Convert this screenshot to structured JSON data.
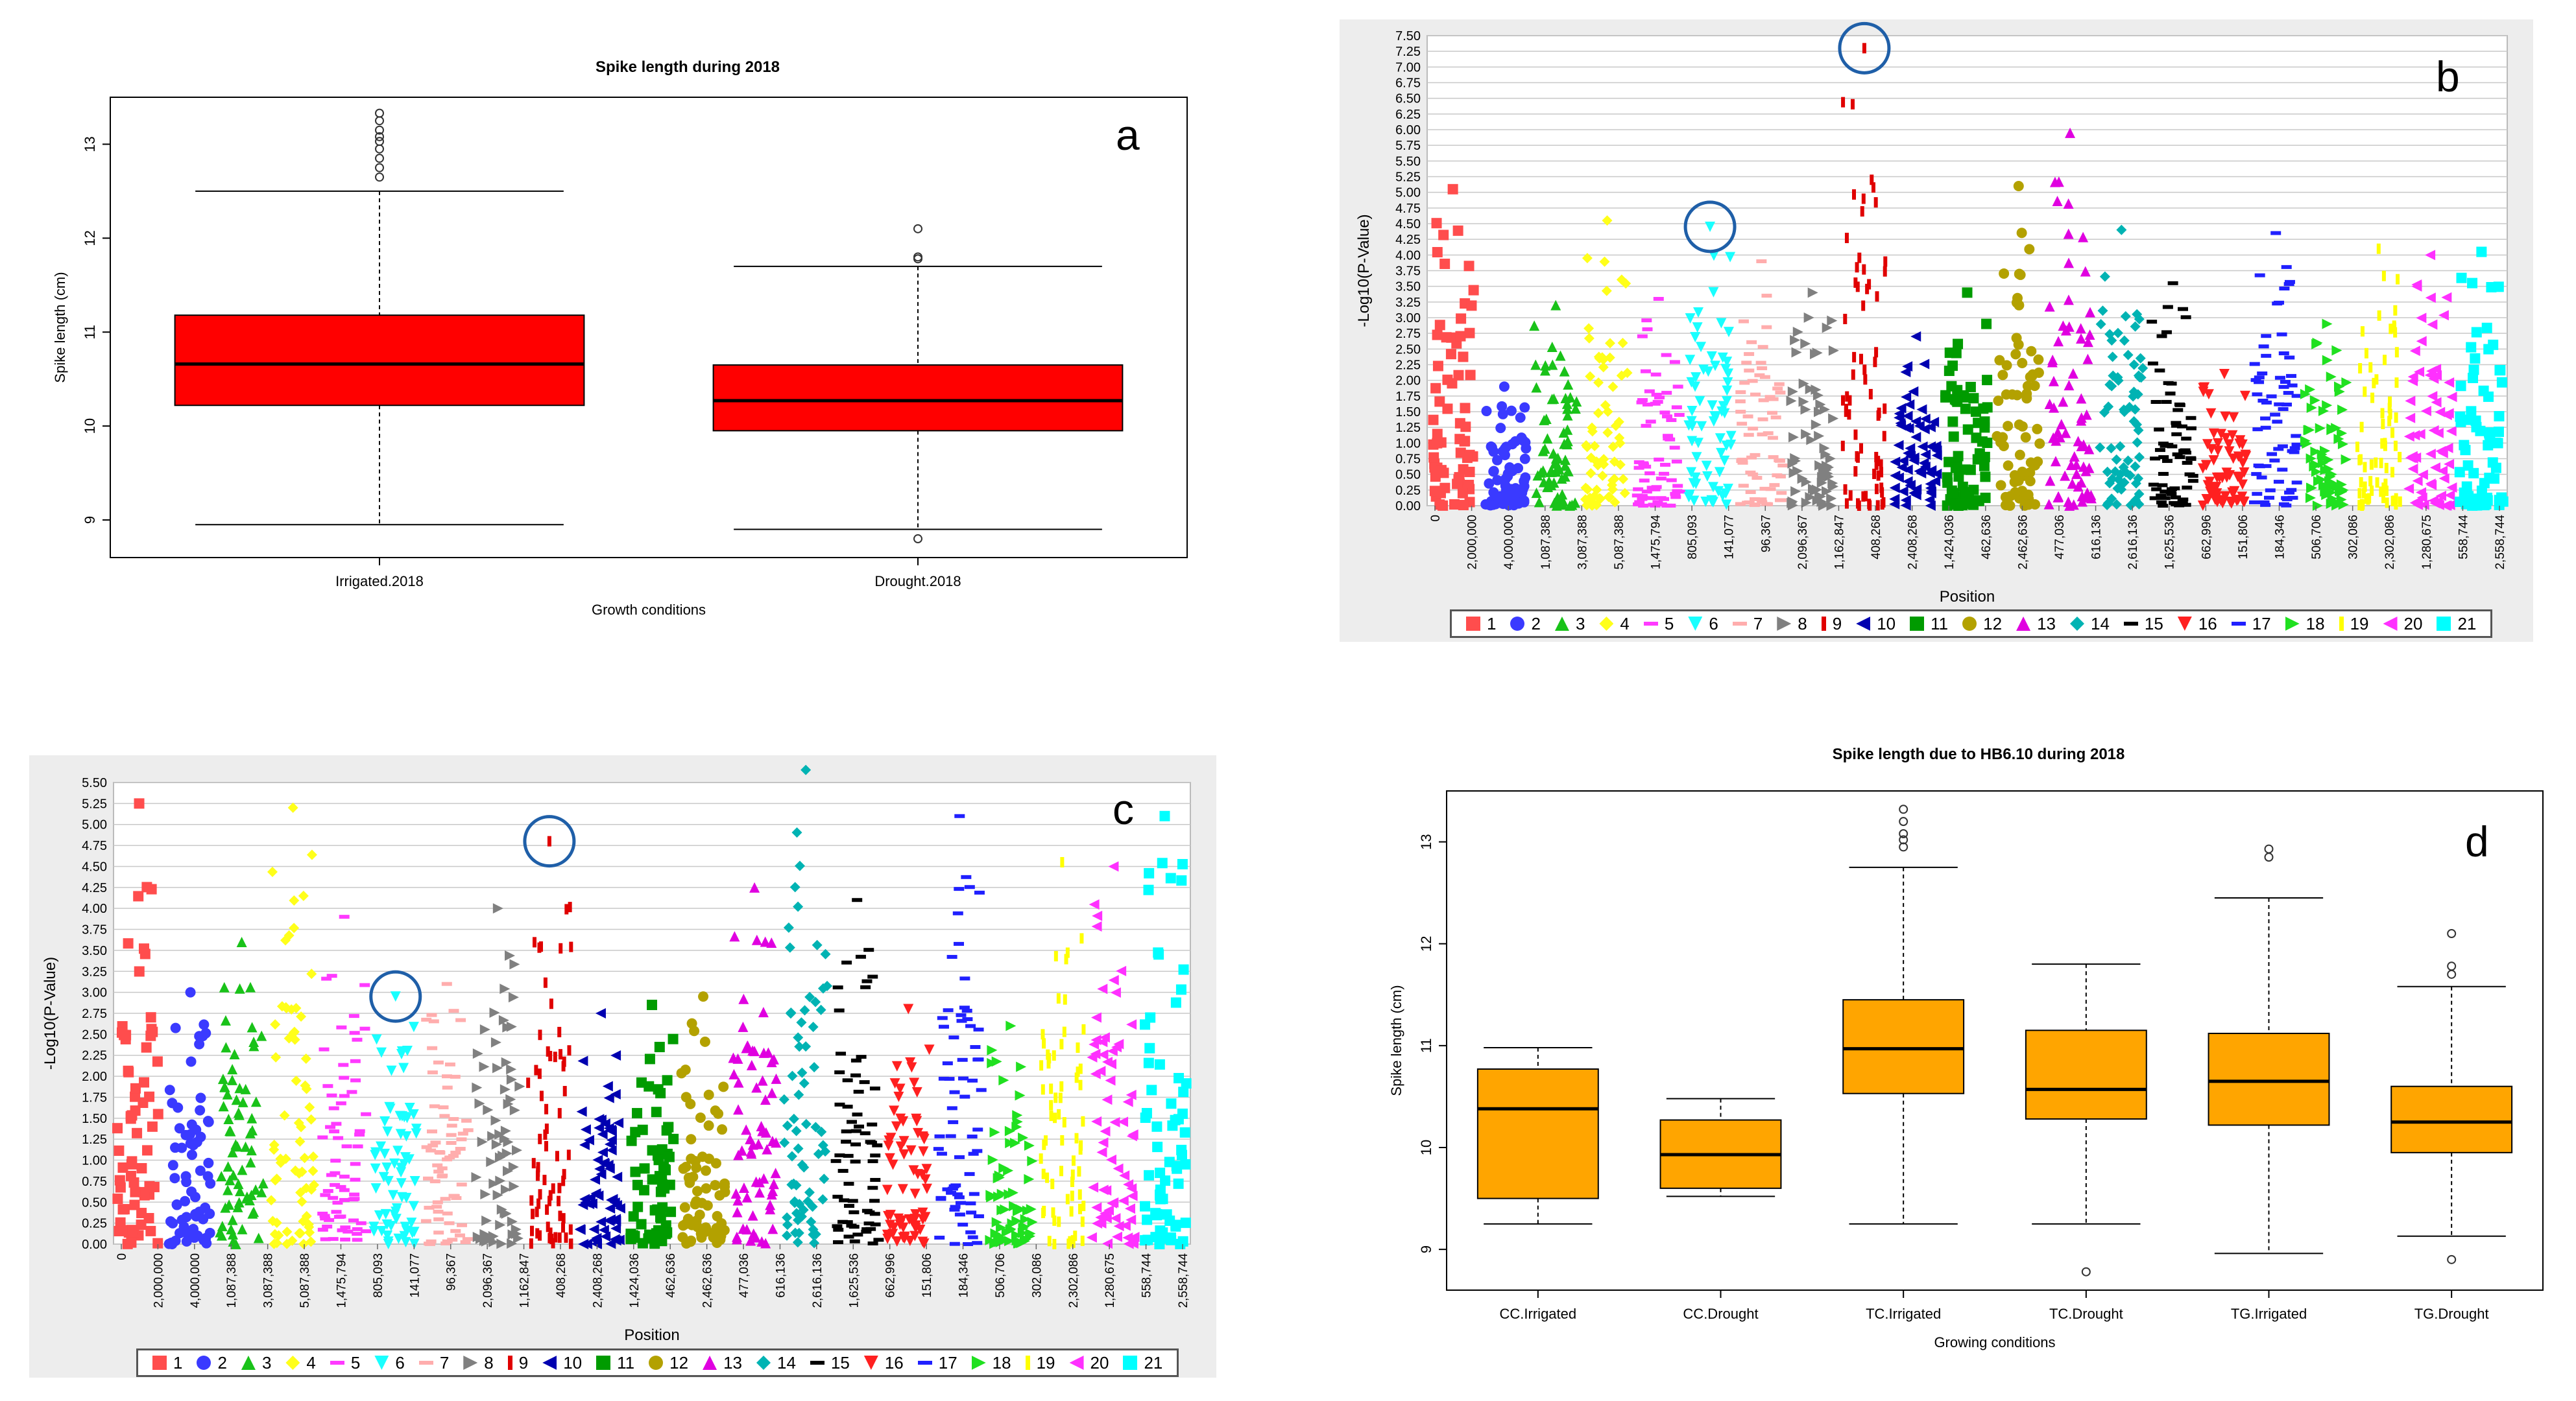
{
  "chart_data": [
    {
      "panel": "a",
      "type": "box",
      "title": "Spike length during 2018",
      "xlabel": "Growth conditions",
      "ylabel": "Spike length (cm)",
      "ylim": [
        8.6,
        13.5
      ],
      "yticks": [
        "9",
        "10",
        "11",
        "12",
        "13"
      ],
      "box_color": "#ff0000",
      "categories": [
        "Irrigated.2018",
        "Drought.2018"
      ],
      "boxes": [
        {
          "name": "Irrigated.2018",
          "min": 8.95,
          "q1": 10.22,
          "median": 10.66,
          "q3": 11.18,
          "max": 12.5,
          "outliers": [
            12.65,
            12.75,
            12.85,
            12.95,
            13.03,
            13.08,
            13.15,
            13.25,
            13.33
          ]
        },
        {
          "name": "Drought.2018",
          "min": 8.9,
          "q1": 9.95,
          "median": 10.27,
          "q3": 10.65,
          "max": 11.7,
          "outliers": [
            8.8,
            11.78,
            11.8,
            12.1
          ]
        }
      ]
    },
    {
      "panel": "b",
      "type": "scatter",
      "xlabel": "Position",
      "ylabel": "-Log10(P-Value)",
      "ylim": [
        0,
        7.5
      ],
      "yticks": [
        "0.00",
        "0.25",
        "0.50",
        "0.75",
        "1.00",
        "1.25",
        "1.50",
        "1.75",
        "2.00",
        "2.25",
        "2.50",
        "2.75",
        "3.00",
        "3.25",
        "3.50",
        "3.75",
        "4.00",
        "4.25",
        "4.50",
        "4.75",
        "5.00",
        "5.25",
        "5.50",
        "5.75",
        "6.00",
        "6.25",
        "6.50",
        "6.75",
        "7.00",
        "7.25",
        "7.50"
      ],
      "xtick_labels": [
        "0",
        "2,000,000",
        "4,000,000",
        "1,087,388",
        "3,087,388",
        "5,087,388",
        "1,475,794",
        "805,093",
        "141,077",
        "96,367",
        "2,096,367",
        "1,162,847",
        "408,268",
        "2,408,268",
        "1,424,036",
        "462,636",
        "2,462,636",
        "477,036",
        "616,136",
        "2,616,136",
        "1,625,536",
        "662,996",
        "151,806",
        "184,346",
        "506,706",
        "302,086",
        "2,302,086",
        "1,280,675",
        "558,744",
        "2,558,744"
      ],
      "chromosomes": [
        "1",
        "2",
        "3",
        "4",
        "5",
        "6",
        "7",
        "8",
        "9",
        "10",
        "11",
        "12",
        "13",
        "14",
        "15",
        "16",
        "17",
        "18",
        "19",
        "20",
        "21"
      ],
      "chromosome_max": [
        5.05,
        1.9,
        3.2,
        4.55,
        3.3,
        4.45,
        3.9,
        3.4,
        7.3,
        2.7,
        3.4,
        5.1,
        5.95,
        4.4,
        3.55,
        2.1,
        4.35,
        2.9,
        4.1,
        4.0,
        4.05
      ],
      "highlighted_peaks": [
        {
          "chromosome": "9",
          "value": 7.3
        },
        {
          "chromosome": "6",
          "value": 4.45
        }
      ]
    },
    {
      "panel": "c",
      "type": "scatter",
      "xlabel": "Position",
      "ylabel": "-Log10(P-Value)",
      "ylim": [
        0,
        5.5
      ],
      "yticks": [
        "0.00",
        "0.25",
        "0.50",
        "0.75",
        "1.00",
        "1.25",
        "1.50",
        "1.75",
        "2.00",
        "2.25",
        "2.50",
        "2.75",
        "3.00",
        "3.25",
        "3.50",
        "3.75",
        "4.00",
        "4.25",
        "4.50",
        "4.75",
        "5.00",
        "5.25",
        "5.50"
      ],
      "xtick_labels": [
        "0",
        "2,000,000",
        "4,000,000",
        "1,087,388",
        "3,087,388",
        "5,087,388",
        "1,475,794",
        "805,093",
        "141,077",
        "96,367",
        "2,096,367",
        "1,162,847",
        "408,268",
        "2,408,268",
        "1,424,036",
        "462,636",
        "2,462,636",
        "477,036",
        "616,136",
        "2,616,136",
        "1,625,536",
        "662,996",
        "151,806",
        "184,346",
        "506,706",
        "302,086",
        "2,302,086",
        "1,280,675",
        "558,744",
        "2,558,744"
      ],
      "chromosomes": [
        "1",
        "2",
        "3",
        "4",
        "5",
        "6",
        "7",
        "8",
        "9",
        "10",
        "11",
        "12",
        "13",
        "14",
        "15",
        "16",
        "17",
        "18",
        "19",
        "20",
        "21"
      ],
      "chromosome_max": [
        5.25,
        3.0,
        3.6,
        5.2,
        3.9,
        2.95,
        3.1,
        4.0,
        4.8,
        2.75,
        2.85,
        2.95,
        4.25,
        5.65,
        4.1,
        2.8,
        5.1,
        2.6,
        4.55,
        4.5,
        5.1
      ],
      "highlighted_peaks": [
        {
          "chromosome": "9",
          "value": 4.8
        },
        {
          "chromosome": "6",
          "value": 2.95
        }
      ]
    },
    {
      "panel": "d",
      "type": "box",
      "title": "Spike length due to HB6.10 during 2018",
      "xlabel": "Growing conditions",
      "ylabel": "Spike length (cm)",
      "ylim": [
        8.6,
        13.5
      ],
      "yticks": [
        "9",
        "10",
        "11",
        "12",
        "13"
      ],
      "box_color": "#ffa500",
      "categories": [
        "CC.Irrigated",
        "CC.Drought",
        "TC.Irrigated",
        "TC.Drought",
        "TG.Irrigated",
        "TG.Drought"
      ],
      "boxes": [
        {
          "name": "CC.Irrigated",
          "min": 9.25,
          "q1": 9.5,
          "median": 10.38,
          "q3": 10.77,
          "max": 10.98,
          "outliers": []
        },
        {
          "name": "CC.Drought",
          "min": 9.52,
          "q1": 9.6,
          "median": 9.93,
          "q3": 10.27,
          "max": 10.48,
          "outliers": []
        },
        {
          "name": "TC.Irrigated",
          "min": 9.25,
          "q1": 10.53,
          "median": 10.97,
          "q3": 11.45,
          "max": 12.75,
          "outliers": [
            12.95,
            13.02,
            13.08,
            13.2,
            13.32
          ]
        },
        {
          "name": "TC.Drought",
          "min": 9.25,
          "q1": 10.28,
          "median": 10.57,
          "q3": 11.15,
          "max": 11.8,
          "outliers": [
            8.78
          ]
        },
        {
          "name": "TG.Irrigated",
          "min": 8.96,
          "q1": 10.22,
          "median": 10.65,
          "q3": 11.12,
          "max": 12.45,
          "outliers": [
            12.85,
            12.93
          ]
        },
        {
          "name": "TG.Drought",
          "min": 9.13,
          "q1": 9.95,
          "median": 10.25,
          "q3": 10.6,
          "max": 11.58,
          "outliers": [
            8.9,
            11.7,
            11.78,
            12.1
          ]
        }
      ]
    }
  ],
  "legend": {
    "chromosomes": [
      "1",
      "2",
      "3",
      "4",
      "5",
      "6",
      "7",
      "8",
      "9",
      "10",
      "11",
      "12",
      "13",
      "14",
      "15",
      "16",
      "17",
      "18",
      "19",
      "20",
      "21"
    ],
    "colors": [
      "#ff4d4d",
      "#3a3aff",
      "#19c219",
      "#ffff1a",
      "#ff3aff",
      "#19ffff",
      "#ffadad",
      "#808080",
      "#e00000",
      "#0000b0",
      "#009b00",
      "#b3a100",
      "#e000e0",
      "#00b3b3",
      "#000000",
      "#ff2020",
      "#2020ff",
      "#20e020",
      "#ffff00",
      "#ff30ff",
      "#00ffff"
    ],
    "shapes": [
      "square",
      "circle",
      "triangle",
      "diamond",
      "dash",
      "tri-down",
      "dash",
      "tri-right",
      "bar",
      "tri-left",
      "square",
      "circle",
      "triangle",
      "diamond",
      "dash",
      "tri-down",
      "dash",
      "tri-right",
      "bar",
      "tri-left",
      "square"
    ]
  },
  "panel_letters": {
    "a": "a",
    "b": "b",
    "c": "c",
    "d": "d"
  }
}
